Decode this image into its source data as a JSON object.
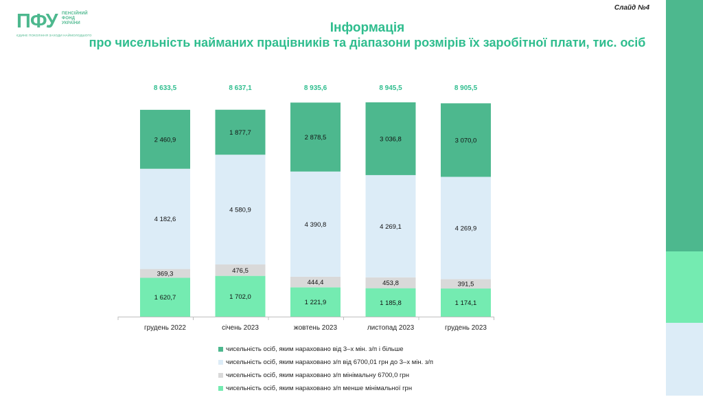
{
  "logo": {
    "mark": "ПФУ",
    "words": [
      "ПЕНСІЙНИЙ",
      "ФОНД",
      "УКРАЇНИ"
    ],
    "slogan": "ЄДИНЕ ПОКОЛІННЯ ЗАХОДИ НАЙМОЛОДШОГО"
  },
  "slide_number": "Слайд №4",
  "colors": {
    "title": "#2fbd8e",
    "accent_dark": "#4db88e",
    "accent_light": "#74ebb1",
    "light_blue": "#dcecf7"
  },
  "chart_data": {
    "type": "bar",
    "stacked": true,
    "title": "Інформація",
    "subtitle": "про чисельність найманих працівників та діапазони розмірів їх заробітної плати, тис. осіб",
    "categories": [
      "грудень 2022",
      "січень 2023",
      "жовтень 2023",
      "листопад 2023",
      "грудень 2023"
    ],
    "totals": [
      "8 633,5",
      "8 637,1",
      "8 935,6",
      "8 945,5",
      "8 905,5"
    ],
    "series": [
      {
        "name": "чисельність осіб, яким нараховано з/п менше мінімальної грн",
        "color": "#74ebb1",
        "values": [
          1620.7,
          1702.0,
          1221.9,
          1185.8,
          1174.1
        ],
        "labels": [
          "1 620,7",
          "1 702,0",
          "1 221,9",
          "1 185,8",
          "1 174,1"
        ]
      },
      {
        "name": "чисельність осіб, яким нараховано з/п  мінімальну 6700,0 грн",
        "color": "#d9d9d9",
        "values": [
          369.3,
          476.5,
          444.4,
          453.8,
          391.5
        ],
        "labels": [
          "369,3",
          "476,5",
          "444,4",
          "453,8",
          "391,5"
        ]
      },
      {
        "name": "чисельність осіб, яким нараховано з/п від 6700,01 грн до 3–х мін. з/п",
        "color": "#dcecf7",
        "values": [
          4182.6,
          4580.9,
          4390.8,
          4269.1,
          4269.9
        ],
        "labels": [
          "4 182,6",
          "4 580,9",
          "4 390,8",
          "4 269,1",
          "4 269,9"
        ]
      },
      {
        "name": "чисельність осіб, яким нараховано від 3–х мін. з/п і більше",
        "color": "#4db88e",
        "values": [
          2460.9,
          1877.7,
          2878.5,
          3036.8,
          3070.0
        ],
        "labels": [
          "2 460,9",
          "1 877,7",
          "2 878,5",
          "3 036,8",
          "3 070,0"
        ]
      }
    ],
    "legend_order": [
      3,
      2,
      1,
      0
    ],
    "grid": false,
    "legend_position": "bottom"
  }
}
